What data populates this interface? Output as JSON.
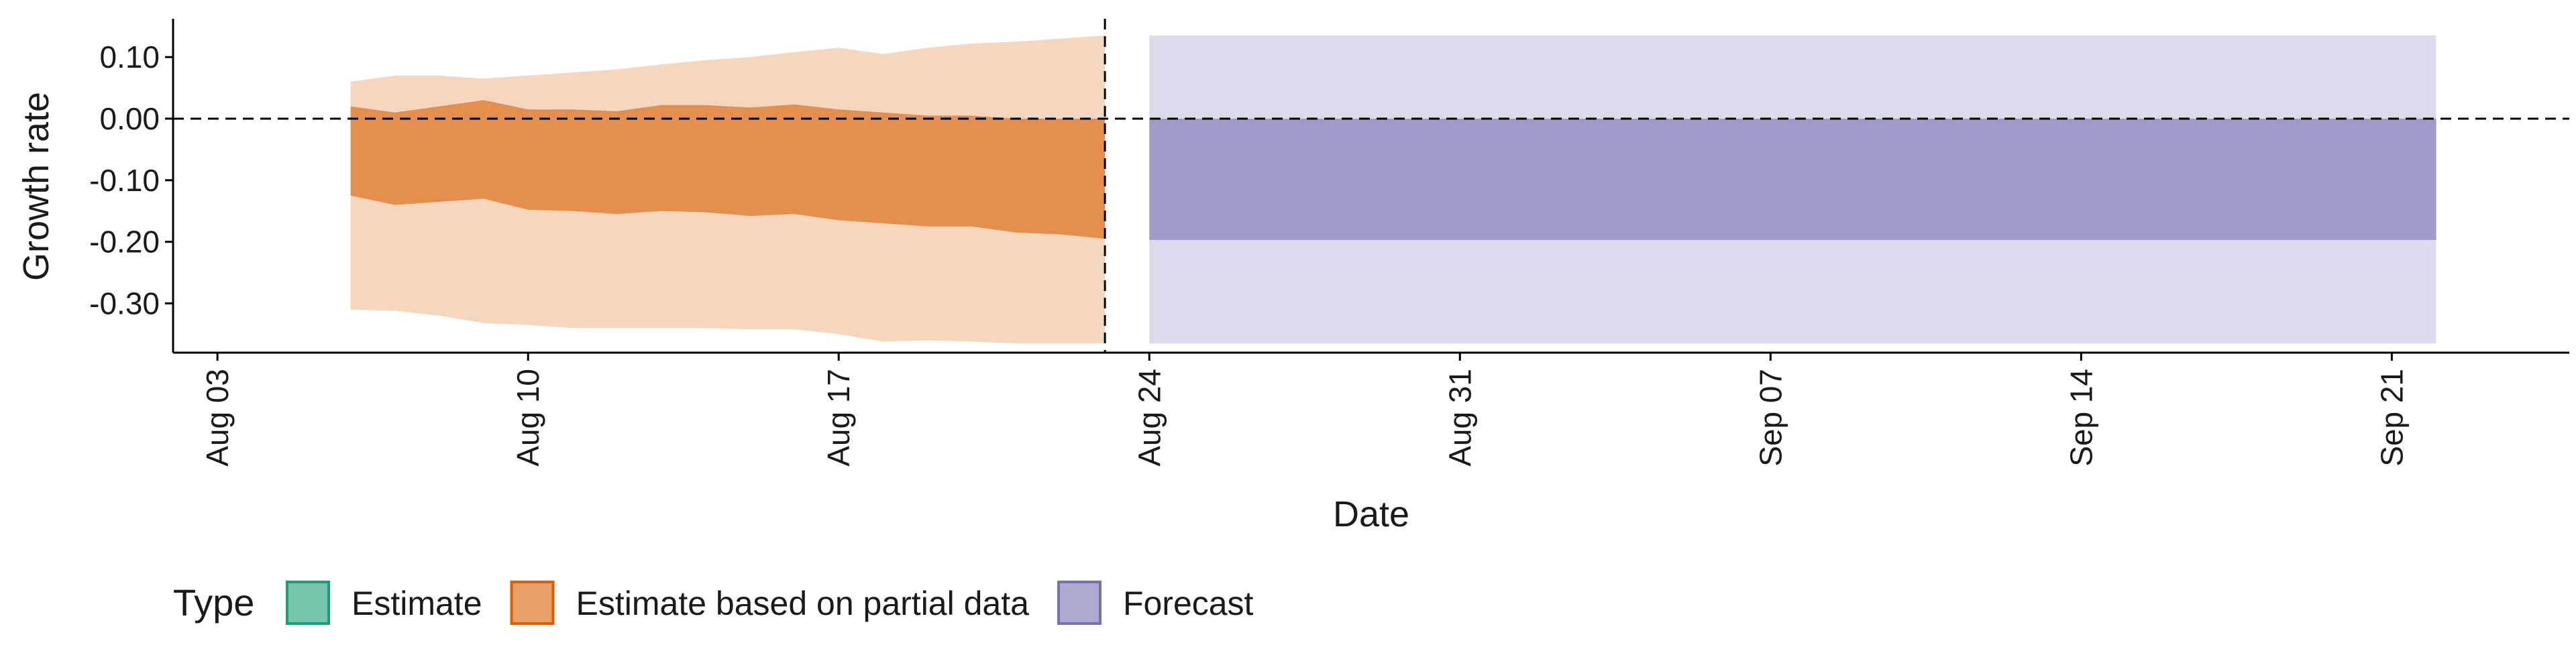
{
  "chart_data": {
    "type": "area",
    "xlabel": "Date",
    "ylabel": "Growth rate",
    "ylim": [
      -0.38,
      0.16
    ],
    "xlim": [
      "2020-08-02",
      "2020-09-25"
    ],
    "x_ticks": [
      {
        "date": "2020-08-03",
        "label": "Aug 03"
      },
      {
        "date": "2020-08-10",
        "label": "Aug 10"
      },
      {
        "date": "2020-08-17",
        "label": "Aug 17"
      },
      {
        "date": "2020-08-24",
        "label": "Aug 24"
      },
      {
        "date": "2020-08-31",
        "label": "Aug 31"
      },
      {
        "date": "2020-09-07",
        "label": "Sep 07"
      },
      {
        "date": "2020-09-14",
        "label": "Sep 14"
      },
      {
        "date": "2020-09-21",
        "label": "Sep 21"
      }
    ],
    "y_ticks": [
      {
        "value": 0.1,
        "label": "0.10"
      },
      {
        "value": 0.0,
        "label": "0.00"
      },
      {
        "value": -0.1,
        "label": "-0.10"
      },
      {
        "value": -0.2,
        "label": "-0.20"
      },
      {
        "value": -0.3,
        "label": "-0.30"
      }
    ],
    "reference_lines": {
      "horizontal_y": 0.0,
      "vertical_date": "2020-08-23",
      "style": "dashed"
    },
    "grid": false,
    "legend": {
      "position": "bottom-left",
      "title": "Type",
      "entries": [
        {
          "label": "Estimate",
          "color": "#1b9e77"
        },
        {
          "label": "Estimate based on partial data",
          "color": "#d95f02"
        },
        {
          "label": "Forecast",
          "color": "#7570b3"
        }
      ]
    },
    "series": [
      {
        "name": "Estimate based on partial data",
        "color": "#d95f02",
        "x": [
          "2020-08-06",
          "2020-08-07",
          "2020-08-08",
          "2020-08-09",
          "2020-08-10",
          "2020-08-11",
          "2020-08-12",
          "2020-08-13",
          "2020-08-14",
          "2020-08-15",
          "2020-08-16",
          "2020-08-17",
          "2020-08-18",
          "2020-08-19",
          "2020-08-20",
          "2020-08-21",
          "2020-08-22",
          "2020-08-23"
        ],
        "inner_upper": [
          0.02,
          0.01,
          0.02,
          0.03,
          0.015,
          0.015,
          0.012,
          0.022,
          0.022,
          0.018,
          0.023,
          0.015,
          0.01,
          0.005,
          0.005,
          0.0,
          0.0,
          0.0
        ],
        "inner_lower": [
          -0.125,
          -0.14,
          -0.135,
          -0.13,
          -0.148,
          -0.15,
          -0.155,
          -0.15,
          -0.152,
          -0.158,
          -0.155,
          -0.165,
          -0.17,
          -0.175,
          -0.175,
          -0.185,
          -0.188,
          -0.195
        ],
        "outer_upper": [
          0.06,
          0.07,
          0.07,
          0.065,
          0.07,
          0.075,
          0.08,
          0.088,
          0.095,
          0.1,
          0.108,
          0.115,
          0.105,
          0.115,
          0.122,
          0.125,
          0.13,
          0.135
        ],
        "outer_lower": [
          -0.31,
          -0.312,
          -0.32,
          -0.332,
          -0.335,
          -0.34,
          -0.34,
          -0.34,
          -0.34,
          -0.342,
          -0.342,
          -0.35,
          -0.362,
          -0.36,
          -0.362,
          -0.365,
          -0.365,
          -0.365
        ]
      },
      {
        "name": "Forecast",
        "color": "#7570b3",
        "x": [
          "2020-08-24",
          "2020-09-22"
        ],
        "inner_upper": [
          0.0,
          0.0
        ],
        "inner_lower": [
          -0.197,
          -0.197
        ],
        "outer_upper": [
          0.135,
          0.135
        ],
        "outer_lower": [
          -0.365,
          -0.365
        ]
      }
    ]
  }
}
